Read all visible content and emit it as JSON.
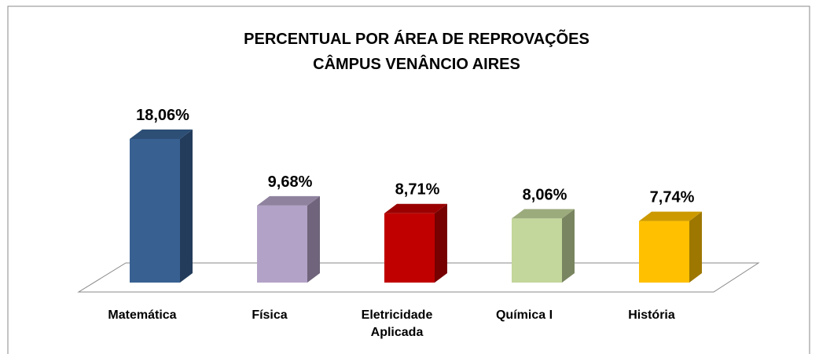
{
  "chart_data": {
    "type": "bar3d",
    "title": "PERCENTUAL  POR ÁREA DE REPROVAÇÕES",
    "subtitle": "CÂMPUS VENÂNCIO AIRES",
    "categories": [
      "Matemática",
      "Física",
      "Eletricidade Aplicada",
      "Química I",
      "História"
    ],
    "values": [
      18.06,
      9.68,
      8.71,
      8.06,
      7.74
    ],
    "value_labels": [
      "18,06%",
      "9,68%",
      "8,71%",
      "8,06%",
      "7,74%"
    ],
    "colors": [
      "#386192",
      "#b3a2c7",
      "#c00000",
      "#c3d69b",
      "#ffc000"
    ]
  }
}
